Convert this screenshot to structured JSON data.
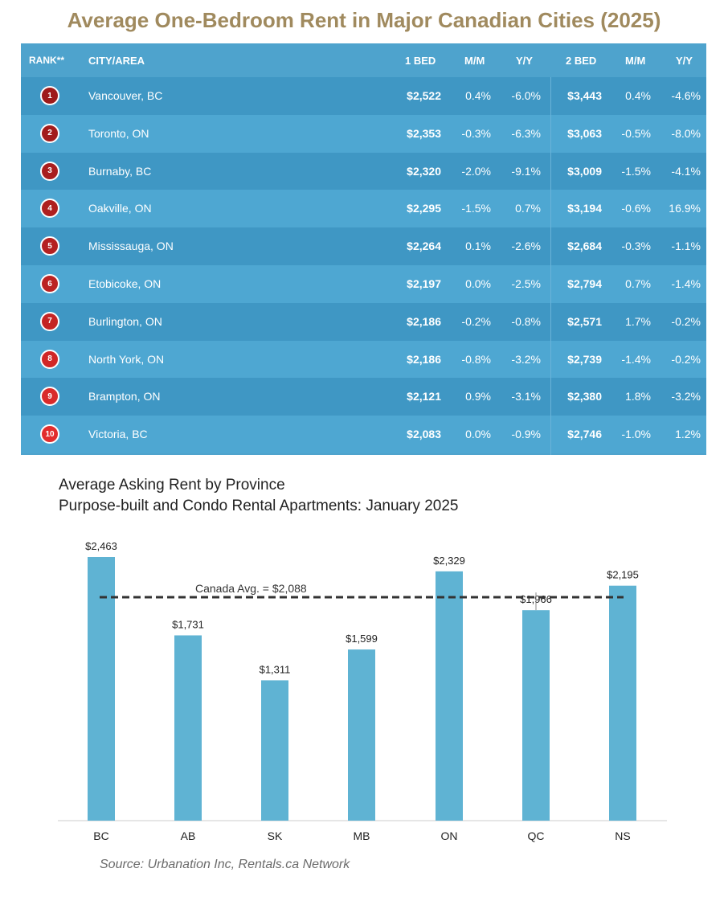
{
  "title": "Average One-Bedroom Rent in Major Canadian Cities (2025)",
  "table": {
    "headers": {
      "rank": "RANK**",
      "city": "CITY/AREA",
      "bed1": "1 BED",
      "mm1": "M/M",
      "yy1": "Y/Y",
      "bed2": "2 BED",
      "mm2": "M/M",
      "yy2": "Y/Y"
    },
    "rows": [
      {
        "rank": "1",
        "city": "Vancouver, BC",
        "bed1": "$2,522",
        "mm1": "0.4%",
        "yy1": "-6.0%",
        "bed2": "$3,443",
        "mm2": "0.4%",
        "yy2": "-4.6%"
      },
      {
        "rank": "2",
        "city": "Toronto, ON",
        "bed1": "$2,353",
        "mm1": "-0.3%",
        "yy1": "-6.3%",
        "bed2": "$3,063",
        "mm2": "-0.5%",
        "yy2": "-8.0%"
      },
      {
        "rank": "3",
        "city": "Burnaby, BC",
        "bed1": "$2,320",
        "mm1": "-2.0%",
        "yy1": "-9.1%",
        "bed2": "$3,009",
        "mm2": "-1.5%",
        "yy2": "-4.1%"
      },
      {
        "rank": "4",
        "city": "Oakville, ON",
        "bed1": "$2,295",
        "mm1": "-1.5%",
        "yy1": "0.7%",
        "bed2": "$3,194",
        "mm2": "-0.6%",
        "yy2": "16.9%"
      },
      {
        "rank": "5",
        "city": "Mississauga, ON",
        "bed1": "$2,264",
        "mm1": "0.1%",
        "yy1": "-2.6%",
        "bed2": "$2,684",
        "mm2": "-0.3%",
        "yy2": "-1.1%"
      },
      {
        "rank": "6",
        "city": "Etobicoke, ON",
        "bed1": "$2,197",
        "mm1": "0.0%",
        "yy1": "-2.5%",
        "bed2": "$2,794",
        "mm2": "0.7%",
        "yy2": "-1.4%"
      },
      {
        "rank": "7",
        "city": "Burlington, ON",
        "bed1": "$2,186",
        "mm1": "-0.2%",
        "yy1": "-0.8%",
        "bed2": "$2,571",
        "mm2": "1.7%",
        "yy2": "-0.2%"
      },
      {
        "rank": "8",
        "city": "North York, ON",
        "bed1": "$2,186",
        "mm1": "-0.8%",
        "yy1": "-3.2%",
        "bed2": "$2,739",
        "mm2": "-1.4%",
        "yy2": "-0.2%"
      },
      {
        "rank": "9",
        "city": "Brampton, ON",
        "bed1": "$2,121",
        "mm1": "0.9%",
        "yy1": "-3.1%",
        "bed2": "$2,380",
        "mm2": "1.8%",
        "yy2": "-3.2%"
      },
      {
        "rank": "10",
        "city": "Victoria, BC",
        "bed1": "$2,083",
        "mm1": "0.0%",
        "yy1": "-0.9%",
        "bed2": "$2,746",
        "mm2": "-1.0%",
        "yy2": "1.2%"
      }
    ],
    "badge_colors": [
      "#9e1b1b",
      "#a21c1c",
      "#a81e1e",
      "#ae1f1f",
      "#b42121",
      "#bb2222",
      "#c42424",
      "#d02727",
      "#d92a2a",
      "#e22d2d"
    ]
  },
  "colors": {
    "title": "#a08a5e",
    "table_bg": "#4ea3cd",
    "bar": "#5fb3d3",
    "avg_line": "#333333"
  },
  "chart_data": {
    "type": "bar",
    "title": "Average Asking Rent by Province",
    "subtitle": "Purpose-built and Condo Rental Apartments: January 2025",
    "categories": [
      "BC",
      "AB",
      "SK",
      "MB",
      "ON",
      "QC",
      "NS"
    ],
    "values": [
      2463,
      1731,
      1311,
      1599,
      2329,
      1966,
      2195
    ],
    "value_labels": [
      "$2,463",
      "$1,731",
      "$1,311",
      "$1,599",
      "$2,329",
      "$1,966",
      "$2,195"
    ],
    "reference_line": {
      "value": 2088,
      "label": "Canada Avg. = $2,088",
      "style": "dashed"
    },
    "ylim": [
      0,
      2600
    ],
    "grid": false,
    "source": "Source: Urbanation Inc, Rentals.ca Network"
  }
}
